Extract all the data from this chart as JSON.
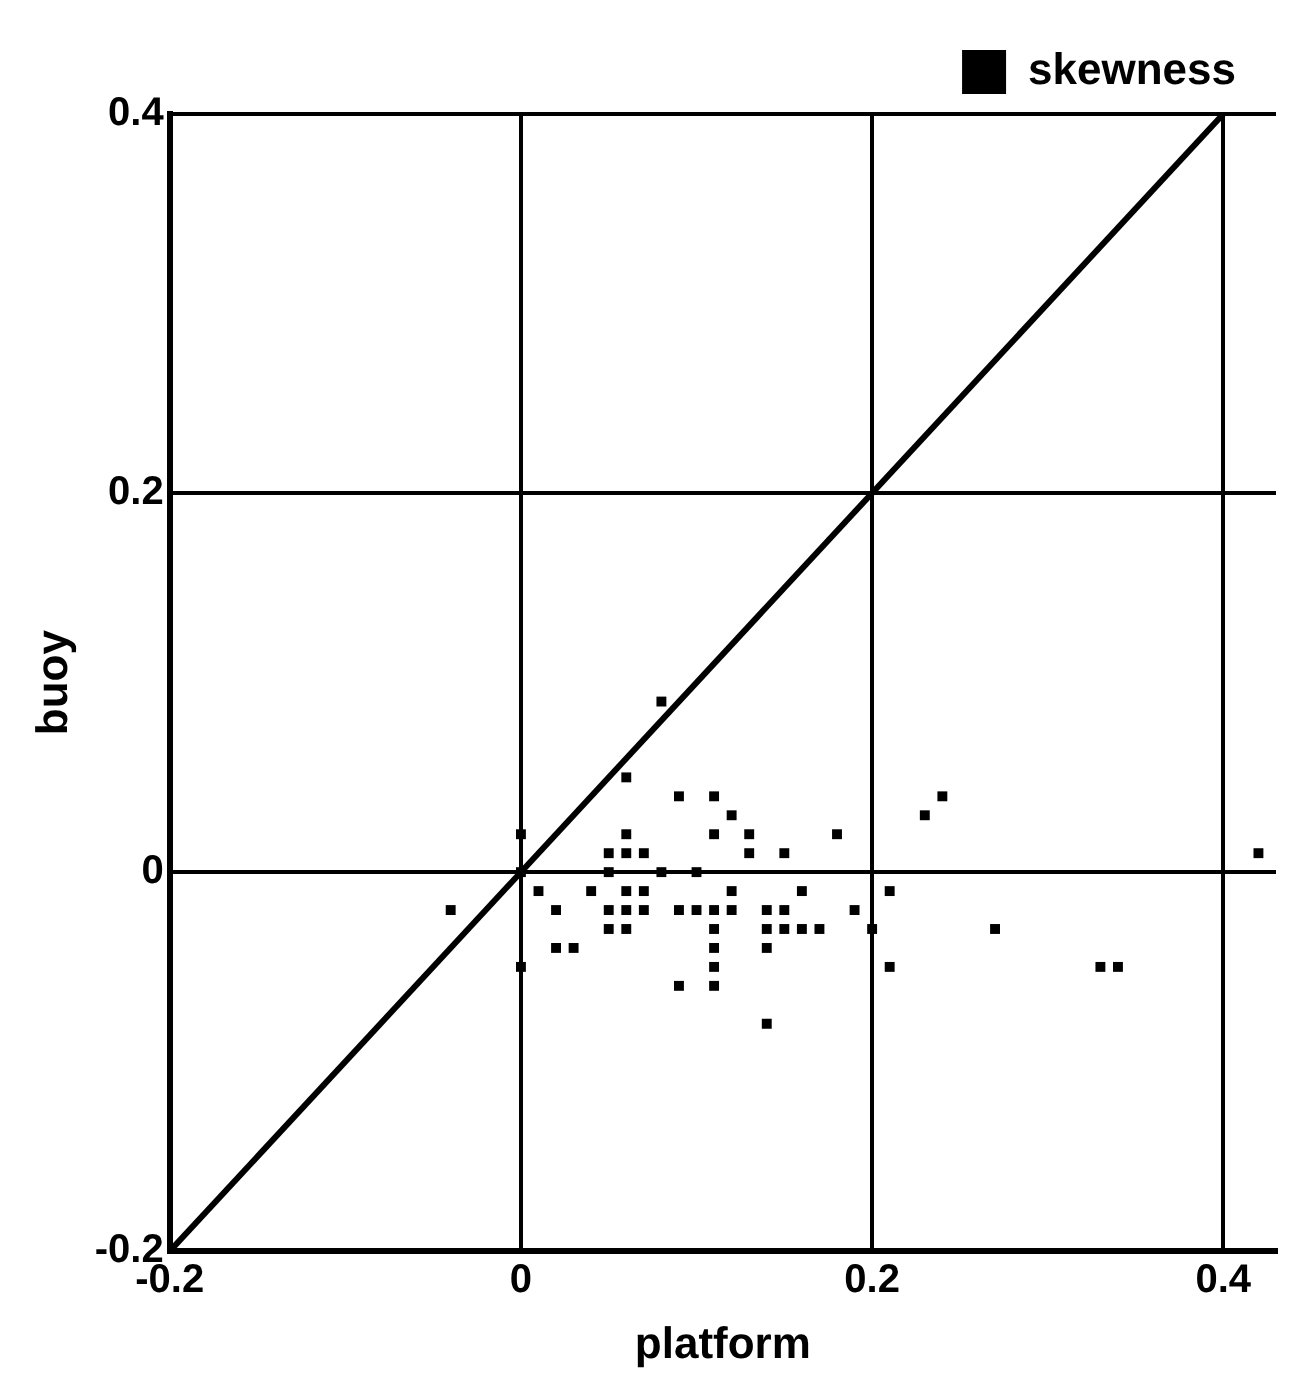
{
  "chart_data": {
    "type": "scatter",
    "xlabel": "platform",
    "ylabel": "buoy",
    "xlim": [
      -0.2,
      0.43
    ],
    "ylim": [
      -0.2,
      0.4
    ],
    "xticks": [
      -0.2,
      0,
      0.2,
      0.4
    ],
    "yticks": [
      -0.2,
      0,
      0.2,
      0.4
    ],
    "grid": true,
    "legend": "top right",
    "series": [
      {
        "name": "skewness",
        "color": "#000000",
        "marker": "square",
        "x": [
          0.08,
          0.06,
          0.09,
          0.11,
          0.12,
          0.06,
          0.11,
          0.13,
          0.18,
          0.05,
          0.06,
          0.07,
          0.13,
          0.15,
          0.0,
          0.0,
          0.05,
          0.08,
          0.1,
          0.01,
          0.04,
          0.06,
          0.07,
          0.12,
          0.16,
          -0.04,
          0.02,
          0.05,
          0.06,
          0.07,
          0.09,
          0.1,
          0.11,
          0.12,
          0.14,
          0.15,
          0.05,
          0.06,
          0.11,
          0.14,
          0.15,
          0.16,
          0.17,
          0.14,
          0.11,
          0.02,
          0.03,
          0.0,
          0.11,
          0.09,
          0.11,
          0.14,
          0.23,
          0.24,
          0.42,
          0.21,
          0.19,
          0.2,
          0.27,
          0.21,
          0.33,
          0.34
        ],
        "values": [
          0.09,
          0.05,
          0.04,
          0.04,
          0.03,
          0.02,
          0.02,
          0.02,
          0.02,
          0.01,
          0.01,
          0.01,
          0.01,
          0.01,
          0.02,
          0.0,
          0.0,
          0.0,
          0.0,
          -0.01,
          -0.01,
          -0.01,
          -0.01,
          -0.01,
          -0.01,
          -0.02,
          -0.02,
          -0.02,
          -0.02,
          -0.02,
          -0.02,
          -0.02,
          -0.02,
          -0.02,
          -0.02,
          -0.02,
          -0.03,
          -0.03,
          -0.03,
          -0.03,
          -0.03,
          -0.03,
          -0.03,
          -0.04,
          -0.04,
          -0.04,
          -0.04,
          -0.05,
          -0.05,
          -0.06,
          -0.06,
          -0.08,
          0.03,
          0.04,
          0.01,
          -0.01,
          -0.02,
          -0.03,
          -0.03,
          -0.05,
          -0.05,
          -0.05
        ]
      },
      {
        "type": "line",
        "color": "#000000",
        "marker": "none",
        "x": [
          -0.2,
          0.4
        ],
        "values": [
          -0.2,
          0.4
        ]
      }
    ]
  }
}
